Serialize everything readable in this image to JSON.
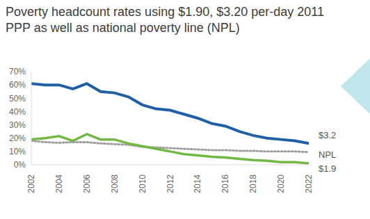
{
  "chart_data": {
    "type": "line",
    "title": "Poverty headcount rates using $1.90, $3.20 per-day 2011 PPP as well as national poverty line (NPL)",
    "x": [
      2002,
      2003,
      2004,
      2005,
      2006,
      2007,
      2008,
      2009,
      2010,
      2011,
      2012,
      2013,
      2014,
      2015,
      2016,
      2017,
      2018,
      2019,
      2020,
      2021,
      2022
    ],
    "xlim": [
      2002,
      2022
    ],
    "xticks": [
      2002,
      2004,
      2006,
      2008,
      2010,
      2012,
      2014,
      2016,
      2018,
      2020,
      2022
    ],
    "ylim": [
      0,
      70
    ],
    "yticks": [
      {
        "value": 0,
        "label": "0%"
      },
      {
        "value": 10,
        "label": "10%"
      },
      {
        "value": 20,
        "label": "20%"
      },
      {
        "value": 30,
        "label": "30%"
      },
      {
        "value": 40,
        "label": "40%"
      },
      {
        "value": 50,
        "label": "50%"
      },
      {
        "value": 60,
        "label": "60%"
      },
      {
        "value": 70,
        "label": "70%"
      }
    ],
    "grid": false,
    "series": [
      {
        "name": "$3.2",
        "color": "#1f5fa6",
        "line_style": "solid",
        "values": [
          61,
          60,
          60,
          57,
          61,
          55,
          54,
          51,
          45,
          42,
          41,
          38,
          35,
          31,
          29,
          25,
          22,
          20,
          19,
          18,
          16
        ]
      },
      {
        "name": "NPL",
        "color": "#9e9e9e",
        "line_style": "dotted",
        "values": [
          18,
          17,
          16.5,
          17,
          17,
          16,
          15.5,
          15,
          13.5,
          13,
          12.5,
          12,
          11.5,
          11,
          11,
          10.5,
          10.5,
          10,
          10,
          10,
          9.5
        ]
      },
      {
        "name": "$1.9",
        "color": "#72b843",
        "line_style": "solid",
        "values": [
          19,
          20,
          21.5,
          18,
          23,
          19,
          19,
          16,
          14,
          12,
          10,
          8,
          7,
          6,
          5.5,
          4.5,
          3.5,
          3,
          2,
          2,
          1
        ]
      }
    ]
  }
}
